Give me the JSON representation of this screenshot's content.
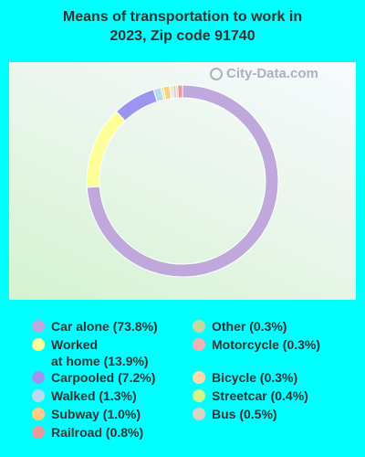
{
  "header": {
    "title_line1": "Means of transportation to work in",
    "title_line2": "2023, Zip code 91740"
  },
  "watermark": "City-Data.com",
  "chart_data": {
    "type": "pie",
    "title": "Means of transportation to work in 2023, Zip code 91740",
    "donut": true,
    "slices": [
      {
        "name": "Car alone",
        "value": 73.8,
        "label": "Car alone (73.8%)",
        "color": "#bfa9dc"
      },
      {
        "name": "Worked at home",
        "value": 13.9,
        "label": "Worked\nat home (13.9%)",
        "color": "#ffff99"
      },
      {
        "name": "Carpooled",
        "value": 7.2,
        "label": "Carpooled (7.2%)",
        "color": "#9a96f0"
      },
      {
        "name": "Walked",
        "value": 1.3,
        "label": "Walked (1.3%)",
        "color": "#b7dcef"
      },
      {
        "name": "Subway",
        "value": 1.0,
        "label": "Subway (1.0%)",
        "color": "#ffcc80"
      },
      {
        "name": "Railroad",
        "value": 0.8,
        "label": "Railroad (0.8%)",
        "color": "#e89a9a"
      },
      {
        "name": "Other",
        "value": 0.3,
        "label": "Other (0.3%)",
        "color": "#c4d8a6"
      },
      {
        "name": "Motorcycle",
        "value": 0.3,
        "label": "Motorcycle (0.3%)",
        "color": "#f0b3b3"
      },
      {
        "name": "Bicycle",
        "value": 0.3,
        "label": "Bicycle (0.3%)",
        "color": "#ffd9a8"
      },
      {
        "name": "Streetcar",
        "value": 0.4,
        "label": "Streetcar (0.4%)",
        "color": "#d4f58a"
      },
      {
        "name": "Bus",
        "value": 0.5,
        "label": "Bus (0.5%)",
        "color": "#d8d2c0"
      }
    ],
    "legend_order": [
      "Car alone",
      "Worked at home",
      "Carpooled",
      "Walked",
      "Subway",
      "Railroad",
      "Other",
      "Motorcycle",
      "Bicycle",
      "Streetcar",
      "Bus"
    ],
    "legend_placement": "bottom"
  }
}
